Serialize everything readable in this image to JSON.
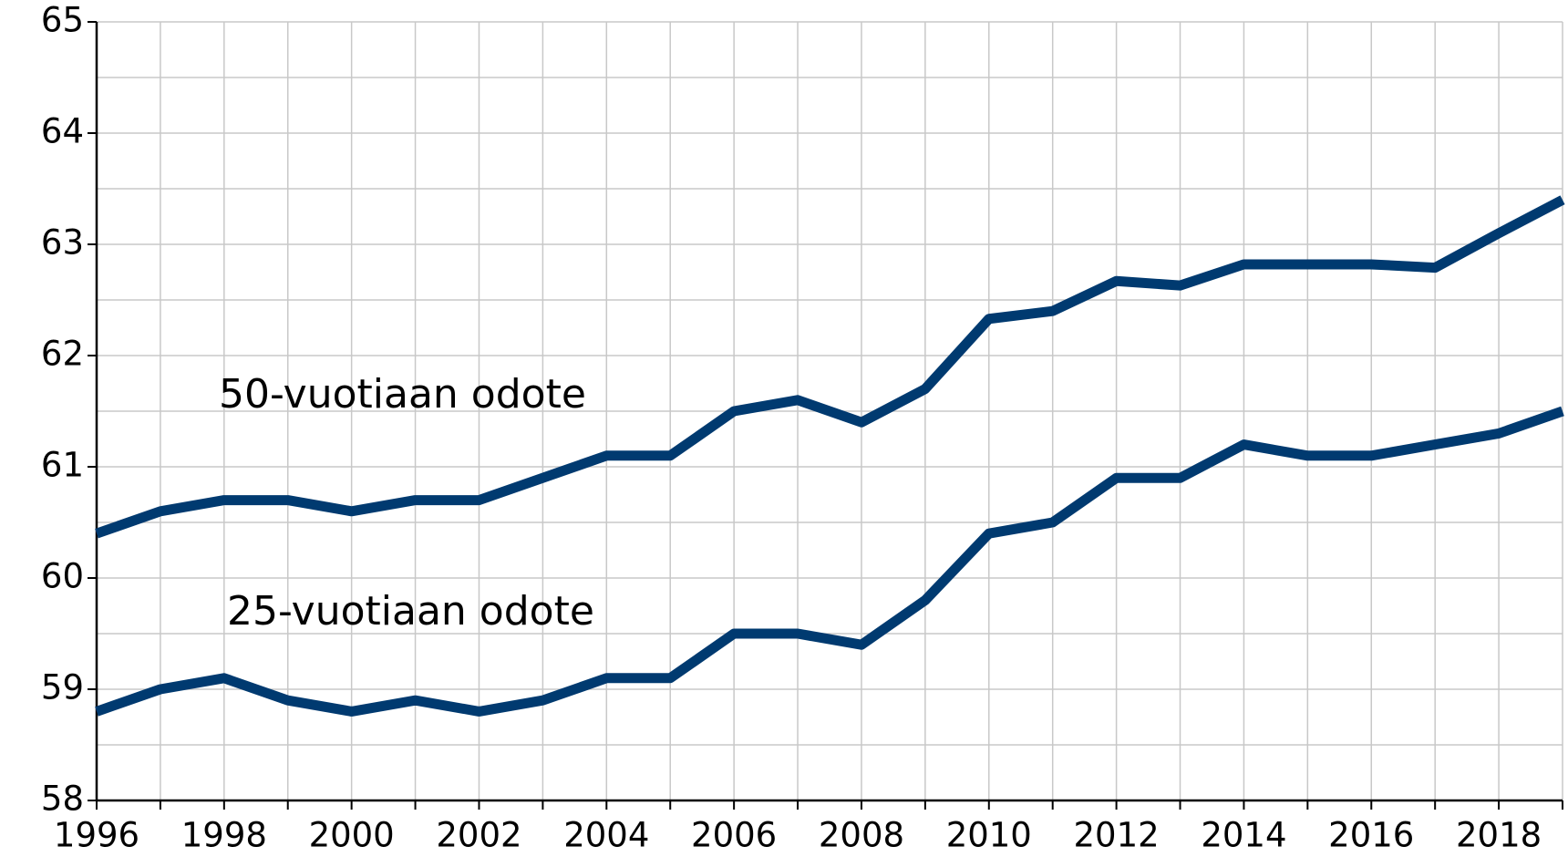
{
  "chart_data": {
    "type": "line",
    "x": [
      1996,
      1997,
      1998,
      1999,
      2000,
      2001,
      2002,
      2003,
      2004,
      2005,
      2006,
      2007,
      2008,
      2009,
      2010,
      2011,
      2012,
      2013,
      2014,
      2015,
      2016,
      2017,
      2018,
      2019
    ],
    "series": [
      {
        "name": "50-vuotiaan odote",
        "color": "#003a70",
        "values": [
          60.4,
          60.6,
          60.7,
          60.7,
          60.6,
          60.7,
          60.7,
          60.9,
          61.1,
          61.1,
          61.5,
          61.6,
          61.4,
          61.7,
          62.33,
          62.4,
          62.67,
          62.63,
          62.82,
          62.82,
          62.82,
          62.79,
          63.1,
          63.4
        ]
      },
      {
        "name": "25-vuotiaan odote",
        "color": "#003a70",
        "values": [
          58.8,
          59.0,
          59.1,
          58.9,
          58.8,
          58.9,
          58.8,
          58.9,
          59.1,
          59.1,
          59.5,
          59.5,
          59.4,
          59.8,
          60.4,
          60.5,
          60.9,
          60.9,
          61.2,
          61.1,
          61.1,
          61.2,
          61.3,
          61.5
        ]
      }
    ],
    "xlim": [
      1996,
      2019
    ],
    "xticks": [
      1996,
      1998,
      2000,
      2002,
      2004,
      2006,
      2008,
      2010,
      2012,
      2014,
      2016,
      2018
    ],
    "ylim": [
      58,
      65
    ],
    "yticks": [
      58,
      59,
      60,
      61,
      62,
      63,
      64,
      65
    ],
    "y_minor_grid": [
      58.5,
      59.5,
      60.5,
      61.5,
      62.5,
      63.5,
      64.5
    ],
    "grid": true
  }
}
